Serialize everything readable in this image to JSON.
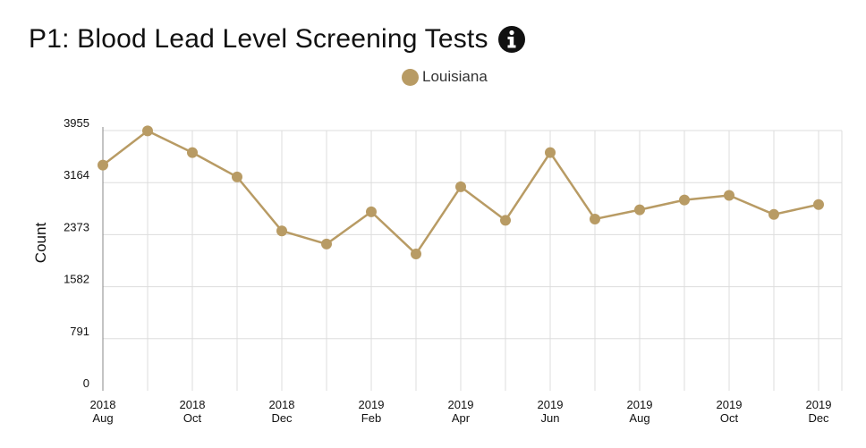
{
  "header": {
    "title": "P1: Blood Lead Level Screening Tests",
    "info_icon": "info-circle-icon"
  },
  "colors": {
    "series": "#b89b64",
    "grid": "#dddddd",
    "axis": "#888888",
    "text": "#111111"
  },
  "chart_data": {
    "type": "line",
    "title": "P1: Blood Lead Level Screening Tests",
    "ylabel": "Count",
    "xlabel": "",
    "ylim": [
      0,
      3955
    ],
    "yticks": [
      0,
      791,
      1582,
      2373,
      3164,
      3955
    ],
    "legend": "top-center",
    "grid": true,
    "x": [
      "2018-08",
      "2018-09",
      "2018-10",
      "2018-11",
      "2018-12",
      "2019-01",
      "2019-02",
      "2019-03",
      "2019-04",
      "2019-05",
      "2019-06",
      "2019-07",
      "2019-08",
      "2019-09",
      "2019-10",
      "2019-11",
      "2019-12"
    ],
    "xtick_labels": [
      {
        "year": "2018",
        "month": "Aug"
      },
      {
        "year": "2018",
        "month": "Oct"
      },
      {
        "year": "2018",
        "month": "Dec"
      },
      {
        "year": "2019",
        "month": "Feb"
      },
      {
        "year": "2019",
        "month": "Apr"
      },
      {
        "year": "2019",
        "month": "Jun"
      },
      {
        "year": "2019",
        "month": "Aug"
      },
      {
        "year": "2019",
        "month": "Oct"
      },
      {
        "year": "2019",
        "month": "Dec"
      }
    ],
    "series": [
      {
        "name": "Louisiana",
        "values": [
          3430,
          3950,
          3620,
          3250,
          2430,
          2230,
          2720,
          2080,
          3100,
          2590,
          3620,
          2610,
          2750,
          2900,
          2970,
          2680,
          2830
        ]
      }
    ]
  }
}
